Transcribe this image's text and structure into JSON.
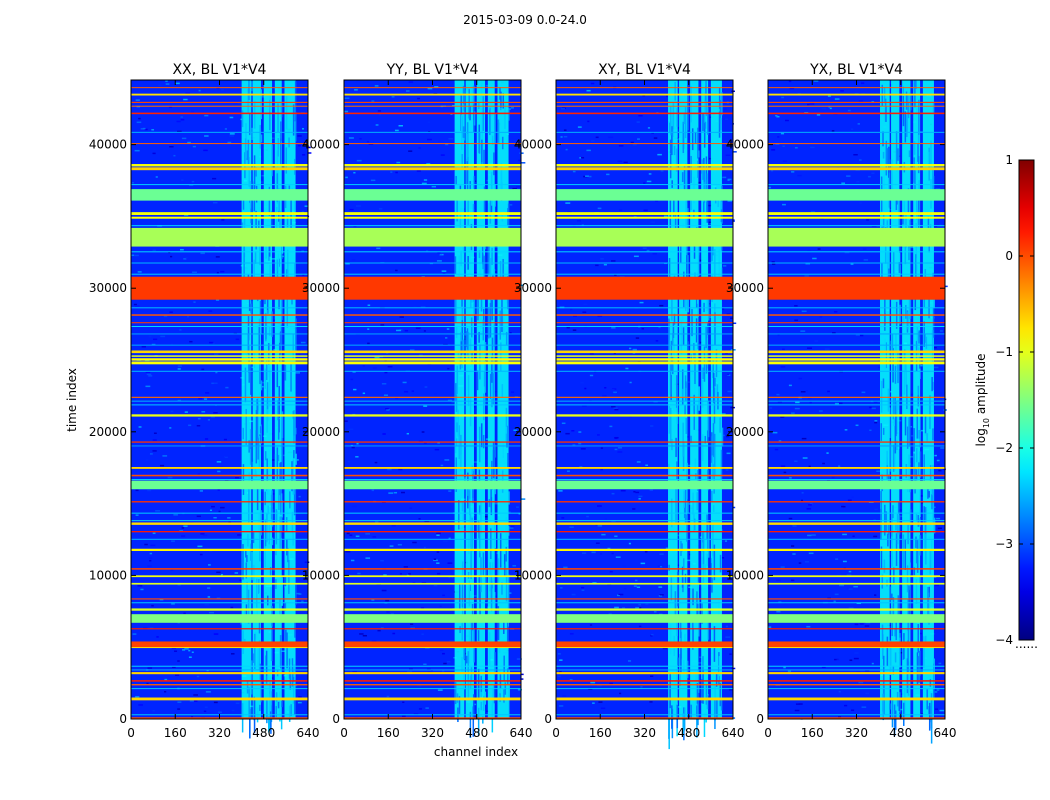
{
  "figure_title": "2015-03-09 0.0-24.0",
  "chart_data": {
    "type": "heatmap",
    "colormap": "jet",
    "xlabel": "channel index",
    "ylabel": "time index",
    "xlim": [
      0,
      640
    ],
    "ylim": [
      0,
      44500
    ],
    "xticks": [
      0,
      160,
      320,
      480,
      640
    ],
    "xtick_labels": [
      "0",
      "160",
      "320",
      "480",
      "640"
    ],
    "yticks": [
      0,
      10000,
      20000,
      30000,
      40000
    ],
    "ytick_labels": [
      "0",
      "10000",
      "20000",
      "30000",
      "40000"
    ],
    "colorbar": {
      "label_prefix": "log",
      "label_sub": "10",
      "label_suffix": " amplitude",
      "range": [
        -4,
        1
      ],
      "ticks": [
        1,
        0,
        -1,
        -2,
        -3,
        -4
      ],
      "tick_labels": [
        "1",
        "0",
        "−1",
        "−2",
        "−3",
        "−4"
      ],
      "note": "......"
    },
    "panels": [
      {
        "title": "XX, BL V1*V4",
        "pol": "XX",
        "band_start": 400
      },
      {
        "title": "YY, BL V1*V4",
        "pol": "YY",
        "band_start": 400
      },
      {
        "title": "XY, BL V1*V4",
        "pol": "XY",
        "band_start": 405
      },
      {
        "title": "YX, BL V1*V4",
        "pol": "YX",
        "band_start": 405
      }
    ],
    "background_level": -3.2,
    "bright_band": {
      "channels": [
        [
          400,
          435
        ],
        [
          440,
          470
        ],
        [
          480,
          510
        ],
        [
          520,
          545
        ],
        [
          555,
          595
        ]
      ],
      "level": -2.1
    },
    "flagged_rows": [
      {
        "t0": 29200,
        "t1": 30800,
        "level": 0.1
      },
      {
        "t0": 32900,
        "t1": 34200,
        "level": -1.3
      },
      {
        "t0": 36100,
        "t1": 36900,
        "level": -1.6
      },
      {
        "t0": 16000,
        "t1": 16600,
        "level": -1.6
      },
      {
        "t0": 5000,
        "t1": 5400,
        "level": 0.05
      },
      {
        "t0": 6700,
        "t1": 7300,
        "level": -1.5
      },
      {
        "t0": 0,
        "t1": 120,
        "level": 0.0
      }
    ]
  }
}
